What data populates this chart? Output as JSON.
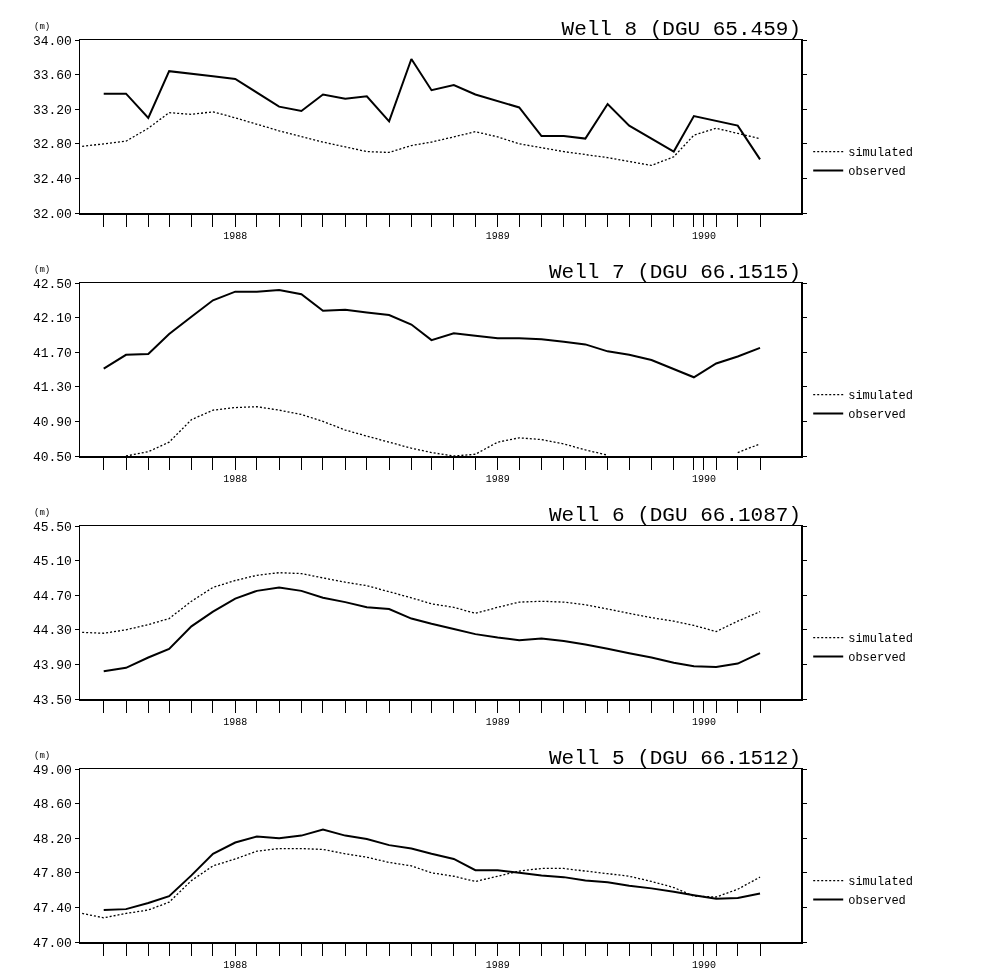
{
  "chart_data": [
    {
      "type": "line",
      "title": "Well 8 (DGU 65.459)",
      "ylabel": "(m)",
      "legend": "right",
      "xlim": [
        "1987-10-29",
        "1990-07-28"
      ],
      "xticks": [
        {
          "value": "1987-12",
          "label": null
        },
        {
          "value": "1988-01",
          "label": null
        },
        {
          "value": "1988-02",
          "label": null
        },
        {
          "value": "1988-03",
          "label": null
        },
        {
          "value": "1988-04",
          "label": null
        },
        {
          "value": "1988-05",
          "label": null
        },
        {
          "value": "1988-06",
          "label": "1988"
        },
        {
          "value": "1988-07",
          "label": null
        },
        {
          "value": "1988-08",
          "label": null
        },
        {
          "value": "1988-09",
          "label": null
        },
        {
          "value": "1988-10",
          "label": null
        },
        {
          "value": "1988-11",
          "label": null
        },
        {
          "value": "1988-12",
          "label": null
        },
        {
          "value": "1989-01",
          "label": null
        },
        {
          "value": "1989-02",
          "label": null
        },
        {
          "value": "1989-03",
          "label": null
        },
        {
          "value": "1989-04",
          "label": null
        },
        {
          "value": "1989-05",
          "label": null
        },
        {
          "value": "1989-06",
          "label": "1989"
        },
        {
          "value": "1989-07",
          "label": null
        },
        {
          "value": "1989-08",
          "label": null
        },
        {
          "value": "1989-09",
          "label": null
        },
        {
          "value": "1989-10",
          "label": null
        },
        {
          "value": "1989-11",
          "label": null
        },
        {
          "value": "1989-12",
          "label": null
        },
        {
          "value": "1990-01",
          "label": null
        },
        {
          "value": "1990-02",
          "label": null
        },
        {
          "value": "1990-03",
          "label": null
        },
        {
          "value": "1990-03-15",
          "label": "1990"
        },
        {
          "value": "1990-04",
          "label": null
        },
        {
          "value": "1990-05",
          "label": null
        },
        {
          "value": "1990-06",
          "label": null
        }
      ],
      "ylim": [
        32,
        34
      ],
      "yticks": [
        {
          "value": 32,
          "label": "32.00"
        },
        {
          "value": 32.4,
          "label": "32.40"
        },
        {
          "value": 32.8,
          "label": "32.80"
        },
        {
          "value": 33.2,
          "label": "33.20"
        },
        {
          "value": 33.6,
          "label": "33.60"
        },
        {
          "value": 34,
          "label": "34.00"
        }
      ],
      "series": [
        {
          "name": "simulated",
          "color": "#000000",
          "line_style": "dotted",
          "x": [
            "1987-11",
            "1988-01",
            "1988-02",
            "1988-03",
            "1988-04",
            "1988-05",
            "1988-06",
            "1988-08",
            "1988-10",
            "1988-12",
            "1989-01",
            "1989-02",
            "1989-03",
            "1989-04",
            "1989-05",
            "1989-06",
            "1989-07",
            "1989-09",
            "1989-11",
            "1990-01",
            "1990-02",
            "1990-03",
            "1990-04",
            "1990-05",
            "1990-06"
          ],
          "values": [
            32.77,
            32.83,
            32.98,
            33.16,
            33.14,
            33.17,
            33.1,
            32.95,
            32.82,
            32.71,
            32.7,
            32.78,
            32.82,
            32.88,
            32.94,
            32.88,
            32.8,
            32.71,
            32.64,
            32.55,
            32.65,
            32.9,
            32.98,
            32.92,
            32.86
          ]
        },
        {
          "name": "observed",
          "color": "#000000",
          "line_style": "solid",
          "x": [
            "1987-12",
            "1988-01",
            "1988-02",
            "1988-03",
            "1988-05",
            "1988-06",
            "1988-08",
            "1988-09",
            "1988-10",
            "1988-11",
            "1988-12",
            "1989-01",
            "1989-02",
            "1989-03",
            "1989-04",
            "1989-05",
            "1989-07",
            "1989-08",
            "1989-09",
            "1989-10",
            "1989-11",
            "1989-12",
            "1990-02",
            "1990-03",
            "1990-05",
            "1990-06"
          ],
          "values": [
            33.38,
            33.38,
            33.1,
            33.64,
            33.58,
            33.55,
            33.23,
            33.18,
            33.37,
            33.32,
            33.35,
            33.06,
            33.78,
            33.42,
            33.48,
            33.37,
            33.22,
            32.89,
            32.89,
            32.86,
            33.26,
            33.01,
            32.71,
            33.12,
            33.01,
            32.62
          ]
        }
      ]
    },
    {
      "type": "line",
      "title": "Well 7 (DGU 66.1515)",
      "ylabel": "(m)",
      "legend": "right",
      "xlim": [
        "1987-10-29",
        "1990-07-28"
      ],
      "xticks": [
        {
          "value": "1987-12",
          "label": null
        },
        {
          "value": "1988-01",
          "label": null
        },
        {
          "value": "1988-02",
          "label": null
        },
        {
          "value": "1988-03",
          "label": null
        },
        {
          "value": "1988-04",
          "label": null
        },
        {
          "value": "1988-05",
          "label": null
        },
        {
          "value": "1988-06",
          "label": "1988"
        },
        {
          "value": "1988-07",
          "label": null
        },
        {
          "value": "1988-08",
          "label": null
        },
        {
          "value": "1988-09",
          "label": null
        },
        {
          "value": "1988-10",
          "label": null
        },
        {
          "value": "1988-11",
          "label": null
        },
        {
          "value": "1988-12",
          "label": null
        },
        {
          "value": "1989-01",
          "label": null
        },
        {
          "value": "1989-02",
          "label": null
        },
        {
          "value": "1989-03",
          "label": null
        },
        {
          "value": "1989-04",
          "label": null
        },
        {
          "value": "1989-05",
          "label": null
        },
        {
          "value": "1989-06",
          "label": "1989"
        },
        {
          "value": "1989-07",
          "label": null
        },
        {
          "value": "1989-08",
          "label": null
        },
        {
          "value": "1989-09",
          "label": null
        },
        {
          "value": "1989-10",
          "label": null
        },
        {
          "value": "1989-11",
          "label": null
        },
        {
          "value": "1989-12",
          "label": null
        },
        {
          "value": "1990-01",
          "label": null
        },
        {
          "value": "1990-02",
          "label": null
        },
        {
          "value": "1990-03",
          "label": null
        },
        {
          "value": "1990-03-15",
          "label": "1990"
        },
        {
          "value": "1990-04",
          "label": null
        },
        {
          "value": "1990-05",
          "label": null
        },
        {
          "value": "1990-06",
          "label": null
        }
      ],
      "ylim": [
        40.5,
        42.5
      ],
      "yticks": [
        {
          "value": 40.5,
          "label": "40.50"
        },
        {
          "value": 40.9,
          "label": "40.90"
        },
        {
          "value": 41.3,
          "label": "41.30"
        },
        {
          "value": 41.7,
          "label": "41.70"
        },
        {
          "value": 42.1,
          "label": "42.10"
        },
        {
          "value": 42.5,
          "label": "42.50"
        }
      ],
      "series": [
        {
          "name": "simulated",
          "color": "#000000",
          "line_style": "dotted",
          "x": [
            "1988-01",
            "1988-02",
            "1988-03",
            "1988-04",
            "1988-05",
            "1988-06",
            "1988-07",
            "1988-08",
            "1988-09",
            "1988-10",
            "1988-11",
            "1988-12",
            "1989-01",
            "1989-02",
            "1989-03",
            "1989-04",
            "1989-05",
            "1989-06",
            "1989-07",
            "1989-08",
            "1989-09",
            "1989-10",
            "1989-11",
            "1989-12",
            "1990-01",
            "1990-02",
            "1990-03",
            "1990-04",
            "1990-05",
            "1990-06"
          ],
          "values": [
            40.5,
            40.55,
            40.66,
            40.92,
            41.03,
            41.06,
            41.07,
            41.03,
            40.98,
            40.9,
            40.8,
            40.73,
            40.66,
            40.59,
            40.54,
            40.5,
            40.52,
            40.66,
            40.71,
            40.69,
            40.64,
            40.57,
            40.51,
            null,
            null,
            null,
            null,
            null,
            40.54,
            40.64
          ]
        },
        {
          "name": "observed",
          "color": "#000000",
          "line_style": "solid",
          "x": [
            "1987-12",
            "1988-01",
            "1988-02",
            "1988-03",
            "1988-04",
            "1988-05",
            "1988-06",
            "1988-07",
            "1988-08",
            "1988-09",
            "1988-10",
            "1988-11",
            "1988-12",
            "1989-01",
            "1989-02",
            "1989-03",
            "1989-04",
            "1989-05",
            "1989-06",
            "1989-07",
            "1989-08",
            "1989-09",
            "1989-10",
            "1989-11",
            "1989-12",
            "1990-01",
            "1990-03",
            "1990-04",
            "1990-05",
            "1990-06"
          ],
          "values": [
            41.51,
            41.67,
            41.68,
            41.91,
            42.11,
            42.3,
            42.4,
            42.4,
            42.42,
            42.37,
            42.18,
            42.19,
            42.16,
            42.13,
            42.02,
            41.84,
            41.92,
            41.89,
            41.86,
            41.86,
            41.85,
            41.82,
            41.79,
            41.71,
            41.67,
            41.61,
            41.41,
            41.57,
            41.65,
            41.75
          ]
        }
      ]
    },
    {
      "type": "line",
      "title": "Well 6 (DGU 66.1087)",
      "ylabel": "(m)",
      "legend": "right",
      "xlim": [
        "1987-10-29",
        "1990-07-28"
      ],
      "xticks": [
        {
          "value": "1987-12",
          "label": null
        },
        {
          "value": "1988-01",
          "label": null
        },
        {
          "value": "1988-02",
          "label": null
        },
        {
          "value": "1988-03",
          "label": null
        },
        {
          "value": "1988-04",
          "label": null
        },
        {
          "value": "1988-05",
          "label": null
        },
        {
          "value": "1988-06",
          "label": "1988"
        },
        {
          "value": "1988-07",
          "label": null
        },
        {
          "value": "1988-08",
          "label": null
        },
        {
          "value": "1988-09",
          "label": null
        },
        {
          "value": "1988-10",
          "label": null
        },
        {
          "value": "1988-11",
          "label": null
        },
        {
          "value": "1988-12",
          "label": null
        },
        {
          "value": "1989-01",
          "label": null
        },
        {
          "value": "1989-02",
          "label": null
        },
        {
          "value": "1989-03",
          "label": null
        },
        {
          "value": "1989-04",
          "label": null
        },
        {
          "value": "1989-05",
          "label": null
        },
        {
          "value": "1989-06",
          "label": "1989"
        },
        {
          "value": "1989-07",
          "label": null
        },
        {
          "value": "1989-08",
          "label": null
        },
        {
          "value": "1989-09",
          "label": null
        },
        {
          "value": "1989-10",
          "label": null
        },
        {
          "value": "1989-11",
          "label": null
        },
        {
          "value": "1989-12",
          "label": null
        },
        {
          "value": "1990-01",
          "label": null
        },
        {
          "value": "1990-02",
          "label": null
        },
        {
          "value": "1990-03",
          "label": null
        },
        {
          "value": "1990-03-15",
          "label": "1990"
        },
        {
          "value": "1990-04",
          "label": null
        },
        {
          "value": "1990-05",
          "label": null
        },
        {
          "value": "1990-06",
          "label": null
        }
      ],
      "ylim": [
        43.5,
        45.5
      ],
      "yticks": [
        {
          "value": 43.5,
          "label": "43.50"
        },
        {
          "value": 43.9,
          "label": "43.90"
        },
        {
          "value": 44.3,
          "label": "44.30"
        },
        {
          "value": 44.7,
          "label": "44.70"
        },
        {
          "value": 45.1,
          "label": "45.10"
        },
        {
          "value": 45.5,
          "label": "45.50"
        }
      ],
      "series": [
        {
          "name": "simulated",
          "color": "#000000",
          "line_style": "dotted",
          "x": [
            "1987-11",
            "1987-12",
            "1988-01",
            "1988-02",
            "1988-03",
            "1988-04",
            "1988-05",
            "1988-06",
            "1988-07",
            "1988-08",
            "1988-09",
            "1988-10",
            "1988-11",
            "1988-12",
            "1989-01",
            "1989-02",
            "1989-03",
            "1989-04",
            "1989-05",
            "1989-06",
            "1989-07",
            "1989-08",
            "1989-09",
            "1989-10",
            "1989-11",
            "1989-12",
            "1990-01",
            "1990-02",
            "1990-03",
            "1990-04",
            "1990-05",
            "1990-06"
          ],
          "values": [
            44.27,
            44.26,
            44.3,
            44.36,
            44.43,
            44.63,
            44.79,
            44.87,
            44.93,
            44.96,
            44.95,
            44.9,
            44.85,
            44.81,
            44.74,
            44.67,
            44.6,
            44.56,
            44.49,
            44.56,
            44.62,
            44.63,
            44.62,
            44.59,
            44.54,
            44.49,
            44.44,
            44.4,
            44.35,
            44.28,
            44.4,
            44.51
          ]
        },
        {
          "name": "observed",
          "color": "#000000",
          "line_style": "solid",
          "x": [
            "1987-12",
            "1988-01",
            "1988-02",
            "1988-03",
            "1988-04",
            "1988-05",
            "1988-06",
            "1988-07",
            "1988-08",
            "1988-09",
            "1988-10",
            "1988-11",
            "1988-12",
            "1989-01",
            "1989-02",
            "1989-03",
            "1989-04",
            "1989-05",
            "1989-06",
            "1989-07",
            "1989-08",
            "1989-09",
            "1989-10",
            "1989-11",
            "1989-12",
            "1990-01",
            "1990-02",
            "1990-03",
            "1990-04",
            "1990-05",
            "1990-06"
          ],
          "values": [
            43.82,
            43.86,
            43.98,
            44.08,
            44.34,
            44.51,
            44.66,
            44.75,
            44.79,
            44.75,
            44.67,
            44.62,
            44.56,
            44.54,
            44.43,
            44.37,
            44.31,
            44.25,
            44.21,
            44.18,
            44.2,
            44.17,
            44.13,
            44.08,
            44.03,
            43.98,
            43.92,
            43.88,
            43.87,
            43.91,
            44.03
          ]
        }
      ]
    },
    {
      "type": "line",
      "title": "Well 5 (DGU 66.1512)",
      "ylabel": "(m)",
      "legend": "right",
      "xlim": [
        "1987-10-29",
        "1990-07-28"
      ],
      "xticks": [
        {
          "value": "1987-12",
          "label": null
        },
        {
          "value": "1988-01",
          "label": null
        },
        {
          "value": "1988-02",
          "label": null
        },
        {
          "value": "1988-03",
          "label": null
        },
        {
          "value": "1988-04",
          "label": null
        },
        {
          "value": "1988-05",
          "label": null
        },
        {
          "value": "1988-06",
          "label": "1988"
        },
        {
          "value": "1988-07",
          "label": null
        },
        {
          "value": "1988-08",
          "label": null
        },
        {
          "value": "1988-09",
          "label": null
        },
        {
          "value": "1988-10",
          "label": null
        },
        {
          "value": "1988-11",
          "label": null
        },
        {
          "value": "1988-12",
          "label": null
        },
        {
          "value": "1989-01",
          "label": null
        },
        {
          "value": "1989-02",
          "label": null
        },
        {
          "value": "1989-03",
          "label": null
        },
        {
          "value": "1989-04",
          "label": null
        },
        {
          "value": "1989-05",
          "label": null
        },
        {
          "value": "1989-06",
          "label": "1989"
        },
        {
          "value": "1989-07",
          "label": null
        },
        {
          "value": "1989-08",
          "label": null
        },
        {
          "value": "1989-09",
          "label": null
        },
        {
          "value": "1989-10",
          "label": null
        },
        {
          "value": "1989-11",
          "label": null
        },
        {
          "value": "1989-12",
          "label": null
        },
        {
          "value": "1990-01",
          "label": null
        },
        {
          "value": "1990-02",
          "label": null
        },
        {
          "value": "1990-03",
          "label": null
        },
        {
          "value": "1990-03-15",
          "label": "1990"
        },
        {
          "value": "1990-04",
          "label": null
        },
        {
          "value": "1990-05",
          "label": null
        },
        {
          "value": "1990-06",
          "label": null
        }
      ],
      "ylim": [
        47,
        49
      ],
      "yticks": [
        {
          "value": 47,
          "label": "47.00"
        },
        {
          "value": 47.4,
          "label": "47.40"
        },
        {
          "value": 47.8,
          "label": "47.80"
        },
        {
          "value": 48.2,
          "label": "48.20"
        },
        {
          "value": 48.6,
          "label": "48.60"
        },
        {
          "value": 49,
          "label": "49.00"
        }
      ],
      "series": [
        {
          "name": "simulated",
          "color": "#000000",
          "line_style": "dotted",
          "x": [
            "1987-11",
            "1987-12",
            "1988-01",
            "1988-02",
            "1988-03",
            "1988-04",
            "1988-05",
            "1988-06",
            "1988-07",
            "1988-08",
            "1988-09",
            "1988-10",
            "1988-11",
            "1988-12",
            "1989-01",
            "1989-02",
            "1989-03",
            "1989-04",
            "1989-05",
            "1989-06",
            "1989-07",
            "1989-08",
            "1989-09",
            "1989-10",
            "1989-11",
            "1989-12",
            "1990-01",
            "1990-02",
            "1990-03",
            "1990-04",
            "1990-05",
            "1990-06"
          ],
          "values": [
            47.33,
            47.28,
            47.33,
            47.37,
            47.46,
            47.71,
            47.88,
            47.96,
            48.05,
            48.08,
            48.08,
            48.07,
            48.02,
            47.98,
            47.92,
            47.88,
            47.8,
            47.76,
            47.7,
            47.76,
            47.82,
            47.85,
            47.85,
            47.82,
            47.79,
            47.76,
            47.7,
            47.63,
            47.53,
            47.52,
            47.61,
            47.75
          ]
        },
        {
          "name": "observed",
          "color": "#000000",
          "line_style": "solid",
          "x": [
            "1987-12",
            "1988-01",
            "1988-02",
            "1988-03",
            "1988-04",
            "1988-05",
            "1988-06",
            "1988-07",
            "1988-08",
            "1988-09",
            "1988-10",
            "1988-11",
            "1988-12",
            "1989-01",
            "1989-02",
            "1989-03",
            "1989-04",
            "1989-05",
            "1989-06",
            "1989-07",
            "1989-08",
            "1989-09",
            "1989-10",
            "1989-11",
            "1989-12",
            "1990-01",
            "1990-02",
            "1990-03",
            "1990-04",
            "1990-05",
            "1990-06"
          ],
          "values": [
            47.37,
            47.38,
            47.45,
            47.53,
            47.77,
            48.02,
            48.15,
            48.22,
            48.2,
            48.23,
            48.3,
            48.23,
            48.19,
            48.12,
            48.08,
            48.02,
            47.96,
            47.83,
            47.83,
            47.8,
            47.77,
            47.75,
            47.71,
            47.69,
            47.65,
            47.62,
            47.58,
            47.54,
            47.5,
            47.51,
            47.56
          ]
        }
      ]
    }
  ]
}
